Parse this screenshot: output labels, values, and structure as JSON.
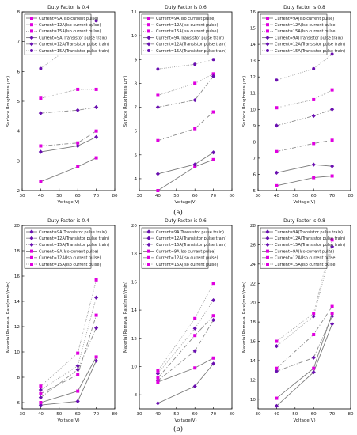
{
  "colors": {
    "solid_low": "#9a9a9a",
    "solid_mid": "#8b8b8b",
    "solid_high": "#7a7a7a",
    "transistor_marker": "#6a0fb0",
    "iso_marker": "#e000e0",
    "axis": "#000000"
  },
  "captions": {
    "a": "(a)",
    "b": "(b)"
  },
  "chart_data": [
    {
      "id": "a1",
      "type": "line",
      "title": "Duty Factor is 0.4",
      "xlabel": "Voltage(V)",
      "ylabel": "Surface Roughness(μm)",
      "xlim": [
        30,
        80
      ],
      "ylim": [
        2,
        8
      ],
      "xticks": [
        30,
        40,
        50,
        60,
        70,
        80
      ],
      "yticks": [
        2,
        3,
        4,
        5,
        6,
        7,
        8
      ],
      "legend": "top-left",
      "series": [
        {
          "name": "Current=9A(Iso current pulse)",
          "marker": "square",
          "style": "solid",
          "x": [
            40,
            60,
            70
          ],
          "y": [
            2.3,
            2.8,
            3.1
          ]
        },
        {
          "name": "Current=12A(Iso current pulse)",
          "marker": "square",
          "style": "dashdot",
          "x": [
            40,
            60,
            70
          ],
          "y": [
            3.5,
            3.6,
            4.0
          ]
        },
        {
          "name": "Current=15A(Iso current pulse)",
          "marker": "square",
          "style": "dotted",
          "x": [
            40,
            60,
            70
          ],
          "y": [
            5.1,
            5.4,
            5.4
          ]
        },
        {
          "name": "Current=9A(Transistor pulse train)",
          "marker": "diamond",
          "style": "solid",
          "x": [
            40,
            60,
            70
          ],
          "y": [
            3.3,
            3.5,
            3.8
          ]
        },
        {
          "name": "Current=12A(Transistor pulse train)",
          "marker": "diamond",
          "style": "dashdot",
          "x": [
            40,
            60,
            70
          ],
          "y": [
            4.6,
            4.7,
            4.8
          ]
        },
        {
          "name": "Current=15A(Transistor pulse train)",
          "marker": "circle",
          "style": "dotted",
          "x": [
            40,
            60,
            70
          ],
          "y": [
            6.1,
            7.0,
            7.7
          ]
        }
      ]
    },
    {
      "id": "a2",
      "type": "line",
      "title": "Duty Factor is 0.6",
      "xlabel": "Voltage(V)",
      "ylabel": "Surface Roughness(μm)",
      "xlim": [
        30,
        80
      ],
      "ylim": [
        3.5,
        11
      ],
      "xticks": [
        30,
        40,
        50,
        60,
        70,
        80
      ],
      "yticks": [
        4,
        5,
        6,
        7,
        8,
        9,
        10,
        11
      ],
      "legend": "top-left",
      "series": [
        {
          "name": "Current=9A(Iso current pulse)",
          "marker": "square",
          "style": "solid",
          "x": [
            40,
            60,
            70
          ],
          "y": [
            3.5,
            4.5,
            4.8
          ]
        },
        {
          "name": "Current=12A(Iso current pulse)",
          "marker": "square",
          "style": "dashdot",
          "x": [
            40,
            60,
            70
          ],
          "y": [
            5.6,
            6.1,
            6.8
          ]
        },
        {
          "name": "Current=15A(Iso current pulse)",
          "marker": "square",
          "style": "dotted",
          "x": [
            40,
            60,
            70
          ],
          "y": [
            7.5,
            8.0,
            8.4
          ]
        },
        {
          "name": "Current=9A(Transistor pulse train)",
          "marker": "diamond",
          "style": "solid",
          "x": [
            40,
            60,
            70
          ],
          "y": [
            4.2,
            4.6,
            5.1
          ]
        },
        {
          "name": "Current=12A(Transistor pulse train)",
          "marker": "diamond",
          "style": "dashdot",
          "x": [
            40,
            60,
            70
          ],
          "y": [
            7.0,
            7.3,
            8.3
          ]
        },
        {
          "name": "Current=15A(Transistor pulse train)",
          "marker": "circle",
          "style": "dotted",
          "x": [
            40,
            60,
            70
          ],
          "y": [
            8.6,
            8.8,
            9.0
          ]
        }
      ]
    },
    {
      "id": "a3",
      "type": "line",
      "title": "Duty Factor is 0.8",
      "xlabel": "Voltage(V)",
      "ylabel": "Surface Roughness(μm)",
      "xlim": [
        30,
        80
      ],
      "ylim": [
        5,
        16
      ],
      "xticks": [
        30,
        40,
        50,
        60,
        70,
        80
      ],
      "yticks": [
        5,
        6,
        7,
        8,
        9,
        10,
        11,
        12,
        13,
        14,
        15,
        16
      ],
      "legend": "top-left",
      "series": [
        {
          "name": "Current=9A(Iso current pulse)",
          "marker": "square",
          "style": "solid",
          "x": [
            40,
            60,
            70
          ],
          "y": [
            5.3,
            5.8,
            5.9
          ]
        },
        {
          "name": "Current=12A(Iso current pulse)",
          "marker": "square",
          "style": "dashdot",
          "x": [
            40,
            60,
            70
          ],
          "y": [
            7.4,
            7.9,
            8.1
          ]
        },
        {
          "name": "Current=15A(Iso current pulse)",
          "marker": "square",
          "style": "dotted",
          "x": [
            40,
            60,
            70
          ],
          "y": [
            10.1,
            10.6,
            11.2
          ]
        },
        {
          "name": "Current=9A(Transistor pulse train)",
          "marker": "diamond",
          "style": "solid",
          "x": [
            40,
            60,
            70
          ],
          "y": [
            6.1,
            6.6,
            6.5
          ]
        },
        {
          "name": "Current=12A(Transistor pulse train)",
          "marker": "diamond",
          "style": "dashdot",
          "x": [
            40,
            60,
            70
          ],
          "y": [
            9.0,
            9.6,
            10.0
          ]
        },
        {
          "name": "Current=15A(Transistor pulse train)",
          "marker": "circle",
          "style": "dotted",
          "x": [
            40,
            60,
            70
          ],
          "y": [
            11.8,
            12.5,
            13.4
          ]
        }
      ]
    },
    {
      "id": "b1",
      "type": "line",
      "title": "Duty Factor is 0.4",
      "xlabel": "Voltage(V)",
      "ylabel": "Material Removal Rate(mm³/min)",
      "xlim": [
        30,
        80
      ],
      "ylim": [
        5.5,
        20
      ],
      "xticks": [
        30,
        40,
        50,
        60,
        70,
        80
      ],
      "yticks": [
        6,
        8,
        10,
        12,
        14,
        16,
        18,
        20
      ],
      "legend": "top-left",
      "series": [
        {
          "name": "Current=9A(Transistor pulse train)",
          "marker": "diamond",
          "style": "solid",
          "x": [
            40,
            60,
            70
          ],
          "y": [
            5.8,
            6.1,
            9.3
          ]
        },
        {
          "name": "Current=12A(Transistor pulse train)",
          "marker": "diamond",
          "style": "dashdot",
          "x": [
            40,
            60,
            70
          ],
          "y": [
            6.4,
            8.6,
            11.9
          ]
        },
        {
          "name": "Current=15A(Transistor pulse train)",
          "marker": "diamond",
          "style": "dotted",
          "x": [
            40,
            60,
            70
          ],
          "y": [
            7.0,
            8.9,
            14.3
          ]
        },
        {
          "name": "Current=9A(Iso current pulse)",
          "marker": "square",
          "style": "solid",
          "x": [
            40,
            60,
            70
          ],
          "y": [
            6.0,
            6.9,
            9.6
          ]
        },
        {
          "name": "Current=12A(Iso current pulse)",
          "marker": "square",
          "style": "dashdot",
          "x": [
            40,
            60,
            70
          ],
          "y": [
            6.7,
            8.2,
            12.9
          ]
        },
        {
          "name": "Current=15A(Iso current pulse)",
          "marker": "square",
          "style": "dotted",
          "x": [
            40,
            60,
            70
          ],
          "y": [
            7.3,
            9.9,
            15.7
          ]
        }
      ]
    },
    {
      "id": "b2",
      "type": "line",
      "title": "Duty Factor is 0.6",
      "xlabel": "Voltage(V)",
      "ylabel": "Material Removal Rate(mm³/min)",
      "xlim": [
        30,
        80
      ],
      "ylim": [
        7,
        20
      ],
      "xticks": [
        30,
        40,
        50,
        60,
        70,
        80
      ],
      "yticks": [
        8,
        10,
        12,
        14,
        16,
        18,
        20
      ],
      "legend": "top-left",
      "series": [
        {
          "name": "Current=9A(Transistor pulse train)",
          "marker": "diamond",
          "style": "solid",
          "x": [
            40,
            60,
            70
          ],
          "y": [
            7.4,
            8.6,
            10.2
          ]
        },
        {
          "name": "Current=12A(Transistor pulse train)",
          "marker": "diamond",
          "style": "dashdot",
          "x": [
            40,
            60,
            70
          ],
          "y": [
            9.0,
            11.1,
            13.3
          ]
        },
        {
          "name": "Current=15A(Transistor pulse train)",
          "marker": "diamond",
          "style": "dotted",
          "x": [
            40,
            60,
            70
          ],
          "y": [
            9.5,
            12.7,
            14.7
          ]
        },
        {
          "name": "Current=9A(Iso current pulse)",
          "marker": "square",
          "style": "solid",
          "x": [
            40,
            60,
            70
          ],
          "y": [
            8.9,
            9.9,
            10.6
          ]
        },
        {
          "name": "Current=12A(Iso current pulse)",
          "marker": "square",
          "style": "dashdot",
          "x": [
            40,
            60,
            70
          ],
          "y": [
            9.2,
            12.2,
            13.6
          ]
        },
        {
          "name": "Current=15A(Iso current pulse)",
          "marker": "square",
          "style": "dotted",
          "x": [
            40,
            60,
            70
          ],
          "y": [
            9.7,
            13.4,
            15.9
          ]
        }
      ]
    },
    {
      "id": "b3",
      "type": "line",
      "title": "Duty Factor is 0.8",
      "xlabel": "Voltage(V)",
      "ylabel": "Material Removal Rate(mm³/min)",
      "xlim": [
        30,
        80
      ],
      "ylim": [
        9,
        28
      ],
      "xticks": [
        30,
        40,
        50,
        60,
        70,
        80
      ],
      "yticks": [
        10,
        12,
        14,
        16,
        18,
        20,
        22,
        24,
        26,
        28
      ],
      "legend": "top-left",
      "series": [
        {
          "name": "Current=9A(Transistor pulse train)",
          "marker": "diamond",
          "style": "solid",
          "x": [
            40,
            60,
            70
          ],
          "y": [
            9.3,
            12.8,
            17.8
          ]
        },
        {
          "name": "Current=12A(Transistor pulse train)",
          "marker": "diamond",
          "style": "dashdot",
          "x": [
            40,
            60,
            70
          ],
          "y": [
            12.9,
            14.3,
            18.6
          ]
        },
        {
          "name": "Current=15A(Transistor pulse train)",
          "marker": "diamond",
          "style": "dotted",
          "x": [
            40,
            60,
            70
          ],
          "y": [
            15.5,
            18.6,
            25.8
          ]
        },
        {
          "name": "Current=9A(Iso current pulse)",
          "marker": "square",
          "style": "solid",
          "x": [
            40,
            60,
            70
          ],
          "y": [
            10.1,
            13.2,
            18.9
          ]
        },
        {
          "name": "Current=12A(Iso current pulse)",
          "marker": "square",
          "style": "dashdot",
          "x": [
            40,
            60,
            70
          ],
          "y": [
            13.2,
            16.7,
            19.6
          ]
        },
        {
          "name": "Current=15A(Iso current pulse)",
          "marker": "square",
          "style": "dotted",
          "x": [
            40,
            60,
            70
          ],
          "y": [
            16.0,
            18.9,
            26.5
          ]
        }
      ]
    }
  ]
}
